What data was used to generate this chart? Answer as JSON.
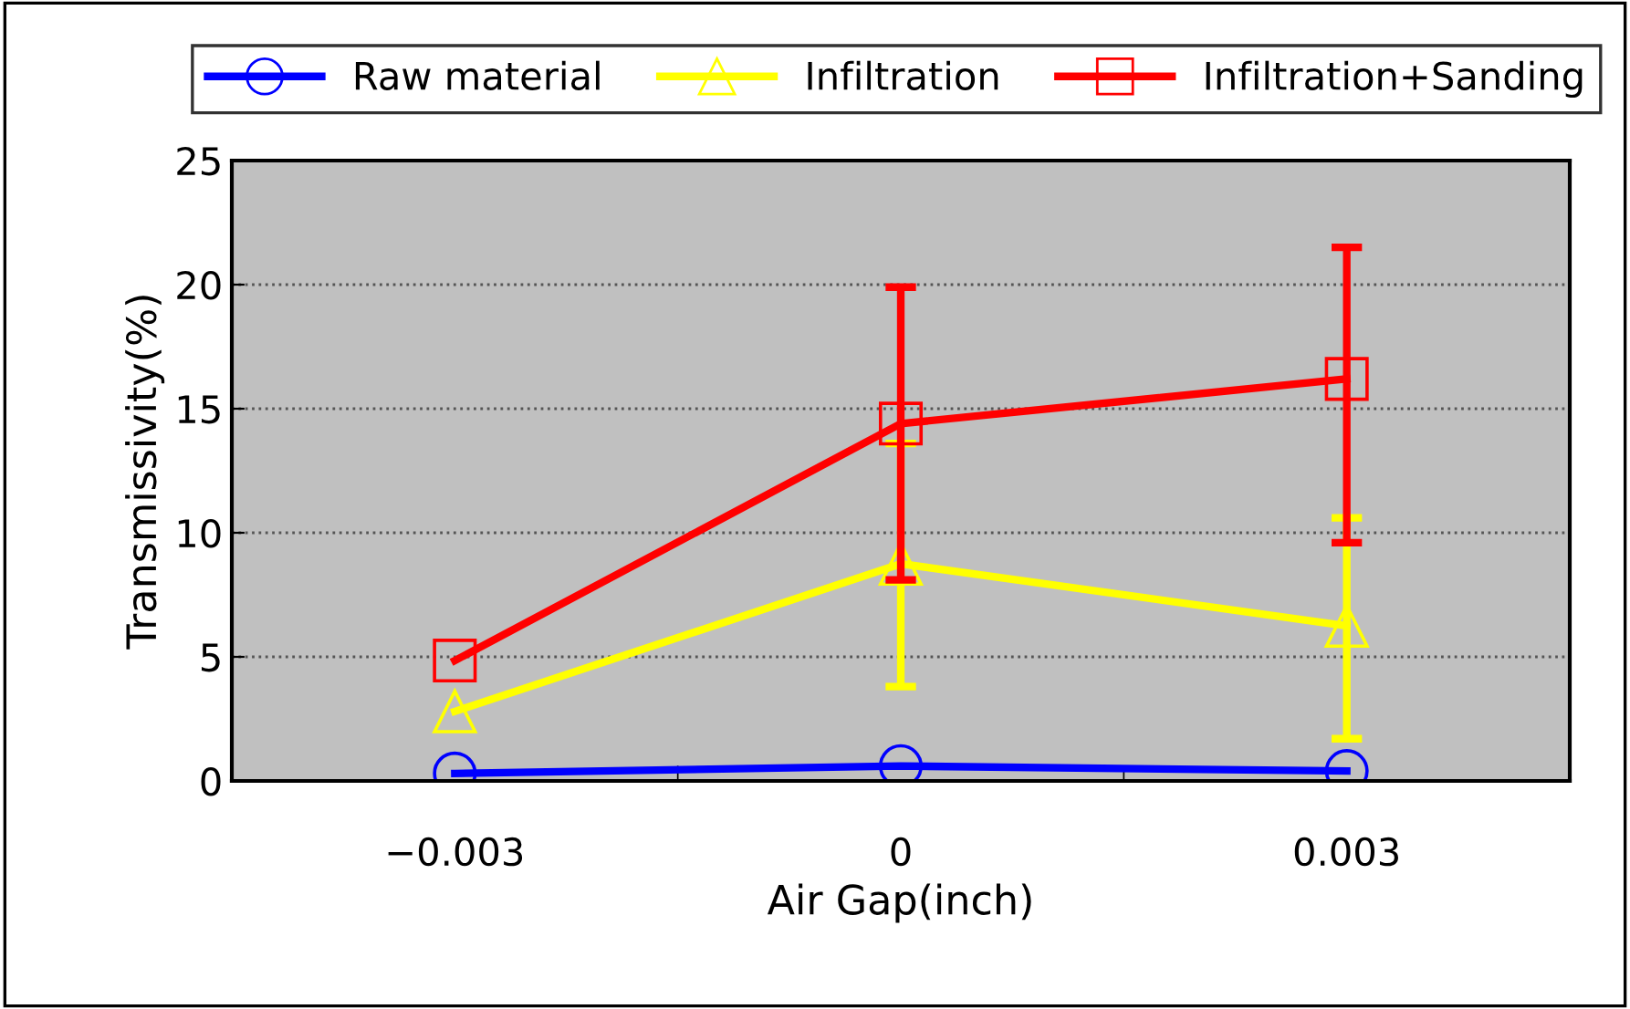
{
  "chart_data": {
    "type": "line",
    "xlabel": "Air Gap(inch)",
    "ylabel": "Transmissivity(%)",
    "categories": [
      "−0.003",
      "0",
      "0.003"
    ],
    "series": [
      {
        "name": "Raw material",
        "color": "#0000ff",
        "marker": "circle",
        "values": [
          0.3,
          0.6,
          0.4
        ]
      },
      {
        "name": "Infiltration",
        "color": "#ffff00",
        "marker": "triangle",
        "values": [
          2.8,
          8.75,
          6.25
        ],
        "errors": [
          null,
          [
            3.8,
            13.6
          ],
          [
            1.7,
            10.6
          ]
        ]
      },
      {
        "name": "Infiltration+Sanding",
        "color": "#ff0000",
        "marker": "square",
        "values": [
          4.85,
          14.4,
          16.2
        ],
        "errors": [
          null,
          [
            8.1,
            19.9
          ],
          [
            9.6,
            21.5
          ]
        ]
      }
    ],
    "ylim": [
      0,
      25
    ],
    "yticks": [
      0,
      5,
      10,
      15,
      20,
      25
    ],
    "grid": "y",
    "legend": "top",
    "line_style": "solid"
  }
}
